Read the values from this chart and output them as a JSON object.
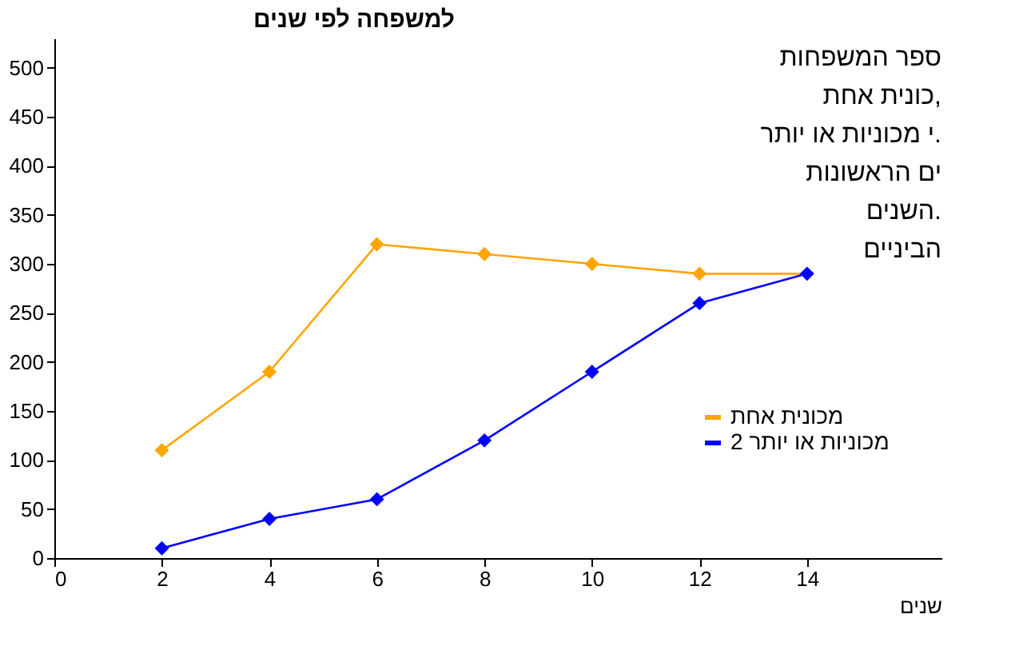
{
  "chart_data": {
    "type": "line",
    "title": "למשפחה לפי שנים",
    "xlabel": "שנים",
    "x": [
      2,
      4,
      6,
      8,
      10,
      12,
      14
    ],
    "series": [
      {
        "name": "מכונית אחת",
        "color": "#ffa500",
        "values": [
          110,
          190,
          320,
          310,
          300,
          290,
          290
        ]
      },
      {
        "name": "2 מכוניות או יותר",
        "color": "#0000ff",
        "values": [
          10,
          40,
          60,
          120,
          190,
          260,
          290
        ]
      }
    ],
    "xlim": [
      0,
      16.5
    ],
    "xticks": [
      0,
      2,
      4,
      6,
      8,
      10,
      12,
      14
    ],
    "ylim": [
      0,
      530
    ],
    "yticks": [
      0,
      50,
      100,
      150,
      200,
      250,
      300,
      350,
      400,
      450,
      500
    ],
    "grid": false,
    "legend": "bottom right",
    "marker": "diamond",
    "line_style": "solid",
    "annotations": [
      "ספר המשפחות",
      "כונית אחת,",
      "י מכוניות או יותר.",
      "ים הראשונות",
      "השנים.",
      "הביניים"
    ]
  }
}
